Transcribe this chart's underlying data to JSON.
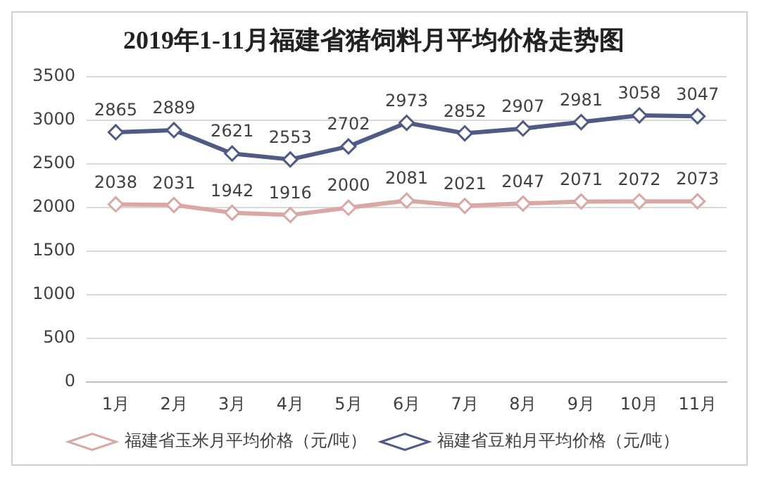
{
  "chart_data": {
    "type": "line",
    "title": "2019年1-11月福建省猪饲料月平均价格走势图",
    "categories": [
      "1月",
      "2月",
      "3月",
      "4月",
      "5月",
      "6月",
      "7月",
      "8月",
      "9月",
      "10月",
      "11月"
    ],
    "series": [
      {
        "name": "福建省玉米月平均价格（元/吨）",
        "color": "#d9a8a5",
        "values": [
          2038,
          2031,
          1942,
          1916,
          2000,
          2081,
          2021,
          2047,
          2071,
          2072,
          2073
        ]
      },
      {
        "name": "福建省豆粕月平均价格（元/吨）",
        "color": "#4f5b86",
        "values": [
          2865,
          2889,
          2621,
          2553,
          2702,
          2973,
          2852,
          2907,
          2981,
          3058,
          3047
        ]
      }
    ],
    "ylim": [
      0,
      3500
    ],
    "yticks": [
      0,
      500,
      1000,
      1500,
      2000,
      2500,
      3000,
      3500
    ],
    "grid": "y",
    "legend": "bottom",
    "marker": "diamond",
    "line_style": "solid",
    "data_labels": true
  }
}
